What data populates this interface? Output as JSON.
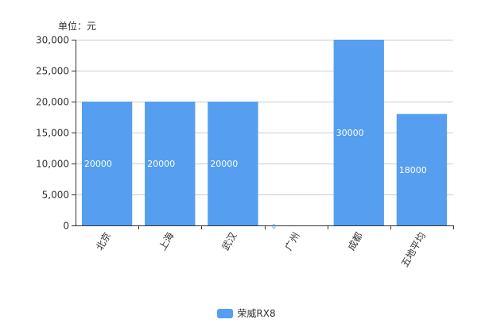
{
  "chart_data": {
    "type": "bar",
    "unit_label": "单位：元",
    "categories": [
      "北京",
      "上海",
      "武汉",
      "广州",
      "成都",
      "五地平均"
    ],
    "series": [
      {
        "name": "荣威RX8",
        "values": [
          20000,
          20000,
          20000,
          0,
          30000,
          18000
        ],
        "data_labels": [
          "20000",
          "20000",
          "20000",
          "0",
          "30000",
          "18000"
        ]
      }
    ],
    "ylim": [
      0,
      30000
    ],
    "y_ticks": [
      0,
      5000,
      10000,
      15000,
      20000,
      25000,
      30000
    ],
    "y_tick_labels": [
      "0",
      "5,000",
      "10,000",
      "15,000",
      "20,000",
      "25,000",
      "30,000"
    ],
    "grid": true,
    "legend_position": "bottom-center",
    "colors": {
      "bar": "#559EF0",
      "grid": "#CCCCCC",
      "axis": "#333333",
      "data_label": "#FFFFFF"
    }
  }
}
